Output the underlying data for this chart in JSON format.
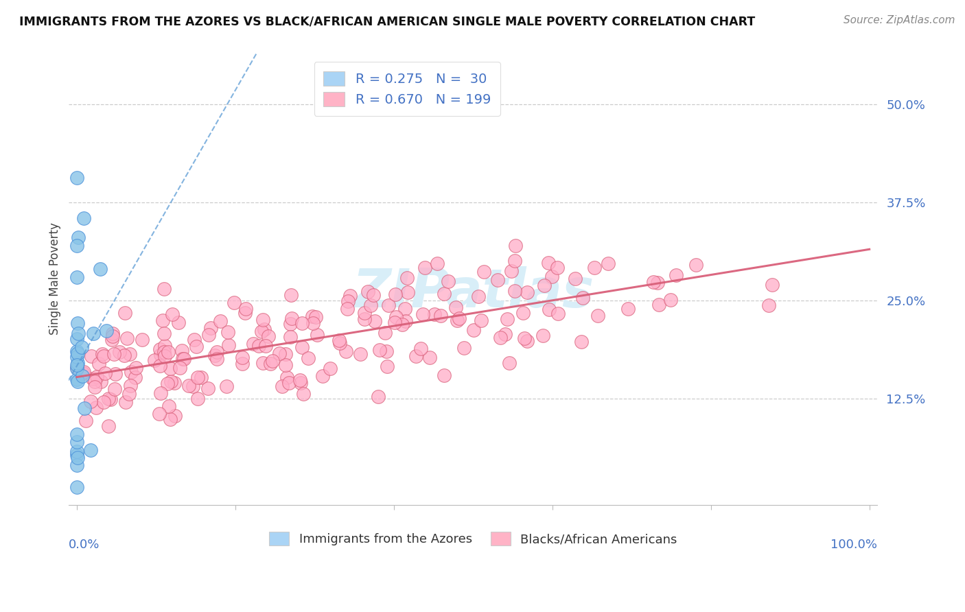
{
  "title": "IMMIGRANTS FROM THE AZORES VS BLACK/AFRICAN AMERICAN SINGLE MALE POVERTY CORRELATION CHART",
  "source": "Source: ZipAtlas.com",
  "ylabel": "Single Male Poverty",
  "legend_blue_label": "R = 0.275   N =  30",
  "legend_pink_label": "R = 0.670   N = 199",
  "legend_blue_color": "#aad4f5",
  "legend_pink_color": "#ffb3c6",
  "scatter_blue_color": "#89c4e8",
  "scatter_pink_color": "#ffadc8",
  "trend_blue_color": "#5b9bd5",
  "trend_pink_color": "#d9607a",
  "grid_color": "#cccccc",
  "watermark_color": "#d8eef8",
  "background_color": "#ffffff",
  "ytick_color": "#4472c4",
  "blue_R": 0.275,
  "blue_N": 30,
  "pink_R": 0.67,
  "pink_N": 199
}
